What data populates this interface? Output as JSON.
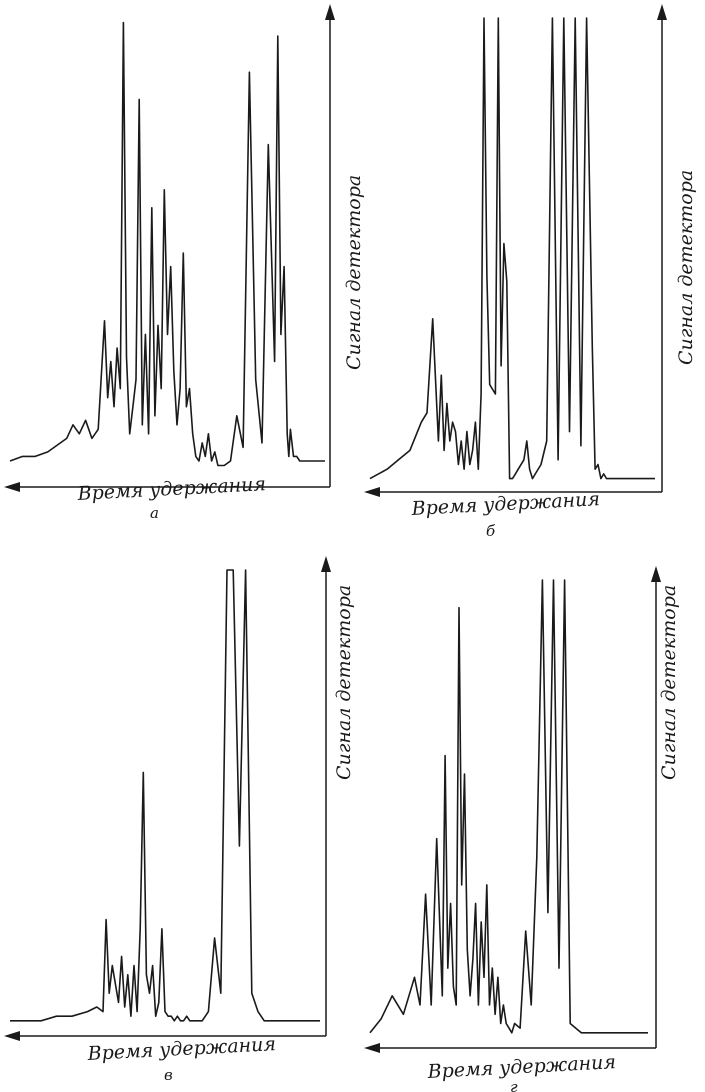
{
  "figure": {
    "panels": [
      {
        "id": "a",
        "xlabel": "Время удержания",
        "ylabel": "Сигнал детектора",
        "letter": "а"
      },
      {
        "id": "b",
        "xlabel": "Время удержания",
        "ylabel": "Сигнал детектора",
        "letter": "б"
      },
      {
        "id": "c",
        "xlabel": "Время удержания",
        "ylabel": "Сигнал детектора",
        "letter": "в"
      },
      {
        "id": "d",
        "xlabel": "Время удержания",
        "ylabel": "Сигнал детектора",
        "letter": "г"
      }
    ]
  },
  "chart_data": [
    {
      "type": "line",
      "xlabel": "Время удержания",
      "ylabel": "Сигнал детектора",
      "x_direction": "right-to-left",
      "xlim": [
        0,
        100
      ],
      "ylim": [
        0,
        100
      ],
      "grid": false,
      "series": [
        {
          "x": [
            0,
            4,
            8,
            12,
            16,
            18,
            20,
            22,
            24,
            26,
            28,
            30,
            31,
            32,
            33,
            34,
            35,
            36,
            37,
            38,
            39,
            40,
            41,
            42,
            43,
            44,
            45,
            46,
            47,
            48,
            49,
            50,
            51,
            52,
            53,
            54,
            55,
            56,
            57,
            58,
            59,
            60,
            61,
            62,
            63,
            64,
            65,
            66,
            68,
            70,
            72,
            74,
            76,
            78,
            80,
            82,
            84,
            85,
            86,
            87,
            88,
            88.5,
            89,
            90,
            91,
            92,
            93,
            93.5,
            94,
            95,
            96,
            96.5,
            97,
            97.5,
            98,
            99,
            100
          ],
          "y": [
            2,
            3,
            3,
            4,
            6,
            7,
            10,
            8,
            11,
            7,
            9,
            33,
            16,
            24,
            14,
            27,
            18,
            99,
            25,
            8,
            14,
            20,
            82,
            10,
            30,
            8,
            58,
            12,
            32,
            18,
            62,
            30,
            45,
            22,
            10,
            18,
            48,
            14,
            18,
            8,
            3,
            2,
            6,
            3,
            8,
            2,
            4,
            1,
            1,
            2,
            12,
            5,
            88,
            20,
            6,
            72,
            24,
            96,
            30,
            45,
            8,
            3,
            9,
            3,
            3,
            2,
            2,
            2,
            2,
            2,
            2,
            2,
            2,
            2,
            2,
            2,
            2
          ]
        }
      ]
    },
    {
      "type": "line",
      "xlabel": "Время удержания",
      "ylabel": "Сигнал детектора",
      "x_direction": "right-to-left",
      "xlim": [
        0,
        100
      ],
      "ylim": [
        0,
        100
      ],
      "grid": false,
      "series": [
        {
          "x": [
            0,
            6,
            10,
            14,
            18,
            20,
            22,
            24,
            25,
            26,
            27,
            28,
            29,
            30,
            31,
            32,
            33,
            34,
            35,
            36,
            37,
            38,
            39,
            40,
            41,
            42,
            44,
            45,
            46,
            47,
            48,
            49,
            50,
            51,
            52,
            54,
            55,
            56,
            57,
            58,
            60,
            62,
            64,
            66,
            68,
            70,
            72,
            74,
            76,
            78,
            79,
            80,
            81,
            82,
            83,
            84,
            85,
            86,
            87,
            88,
            90,
            92,
            94,
            96,
            98,
            100
          ],
          "y": [
            2,
            4,
            6,
            8,
            14,
            16,
            36,
            10,
            24,
            8,
            18,
            10,
            14,
            12,
            5,
            10,
            4,
            12,
            5,
            8,
            14,
            4,
            20,
            100,
            45,
            22,
            20,
            100,
            26,
            52,
            44,
            2,
            2,
            3,
            4,
            6,
            10,
            4,
            2,
            3,
            5,
            10,
            100,
            6,
            100,
            12,
            100,
            9,
            100,
            30,
            4,
            5,
            2,
            3,
            2,
            2,
            2,
            2,
            2,
            2,
            2,
            2,
            2,
            2,
            2,
            2
          ]
        }
      ]
    },
    {
      "type": "line",
      "xlabel": "Время удержания",
      "ylabel": "Сигнал детектора",
      "x_direction": "right-to-left",
      "xlim": [
        0,
        100
      ],
      "ylim": [
        0,
        100
      ],
      "grid": false,
      "series": [
        {
          "x": [
            0,
            5,
            10,
            15,
            20,
            25,
            28,
            30,
            31,
            32,
            33,
            34,
            35,
            36,
            37,
            38,
            39,
            40,
            41,
            42,
            43,
            44,
            45,
            46,
            47,
            48,
            49,
            50,
            51,
            52,
            53,
            54,
            55,
            56,
            57,
            58,
            60,
            62,
            64,
            66,
            68,
            70,
            72,
            74,
            76,
            78,
            80,
            82,
            83,
            84,
            86,
            87,
            88,
            89,
            90,
            91,
            92,
            93,
            94,
            95,
            96,
            98,
            100
          ],
          "y": [
            2,
            2,
            2,
            3,
            3,
            4,
            5,
            4,
            24,
            8,
            14,
            10,
            6,
            16,
            5,
            12,
            3,
            14,
            4,
            22,
            56,
            12,
            8,
            14,
            3,
            6,
            22,
            4,
            3,
            3,
            2,
            3,
            2,
            2,
            3,
            2,
            2,
            2,
            4,
            20,
            8,
            100,
            100,
            40,
            100,
            8,
            4,
            2,
            2,
            2,
            2,
            2,
            2,
            2,
            2,
            2,
            2,
            2,
            2,
            2,
            2,
            2,
            2
          ]
        }
      ]
    },
    {
      "type": "line",
      "xlabel": "Время удержания",
      "ylabel": "Сигнал детектора",
      "x_direction": "right-to-left",
      "xlim": [
        0,
        100
      ],
      "ylim": [
        0,
        100
      ],
      "grid": false,
      "series": [
        {
          "x": [
            0,
            4,
            8,
            12,
            16,
            18,
            20,
            22,
            24,
            26,
            27,
            28,
            29,
            30,
            31,
            32,
            33,
            34,
            35,
            36,
            37,
            38,
            39,
            40,
            41,
            42,
            43,
            44,
            45,
            46,
            47,
            48,
            49,
            50,
            51,
            52,
            54,
            56,
            58,
            60,
            62,
            64,
            66,
            68,
            70,
            72,
            74,
            76,
            78,
            80,
            82,
            84,
            86,
            88,
            90,
            92,
            94,
            96,
            98,
            100
          ],
          "y": [
            2,
            5,
            10,
            6,
            14,
            8,
            32,
            8,
            44,
            10,
            62,
            16,
            30,
            12,
            8,
            94,
            34,
            58,
            20,
            10,
            18,
            30,
            8,
            26,
            14,
            34,
            8,
            16,
            6,
            14,
            4,
            8,
            4,
            3,
            2,
            4,
            3,
            24,
            8,
            40,
            100,
            28,
            100,
            16,
            100,
            4,
            3,
            2,
            2,
            2,
            2,
            2,
            2,
            2,
            2,
            2,
            2,
            2,
            2,
            2
          ]
        }
      ]
    }
  ]
}
